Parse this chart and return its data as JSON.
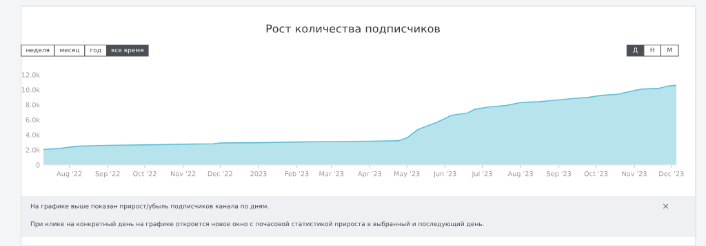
{
  "chart_data": {
    "type": "area",
    "title": "Рост количества подписчиков",
    "x": [
      "2022-07-11",
      "2022-07-25",
      "2022-08-01",
      "2022-08-10",
      "2022-09-01",
      "2022-10-01",
      "2022-11-01",
      "2022-11-25",
      "2022-12-01",
      "2023-01-01",
      "2023-02-01",
      "2023-03-01",
      "2023-04-01",
      "2023-04-24",
      "2023-05-01",
      "2023-05-10",
      "2023-05-16",
      "2023-05-25",
      "2023-06-01",
      "2023-06-06",
      "2023-06-19",
      "2023-06-25",
      "2023-07-06",
      "2023-07-20",
      "2023-08-01",
      "2023-08-15",
      "2023-08-28",
      "2023-09-10",
      "2023-09-25",
      "2023-10-05",
      "2023-10-18",
      "2023-11-07",
      "2023-11-21",
      "2023-11-28",
      "2023-12-05"
    ],
    "series": [
      {
        "color": "#5fc0d8",
        "values": [
          2050,
          2200,
          2350,
          2500,
          2600,
          2650,
          2750,
          2800,
          2900,
          2950,
          3050,
          3100,
          3150,
          3200,
          3600,
          4700,
          5100,
          5650,
          6200,
          6600,
          6900,
          7400,
          7700,
          7900,
          8300,
          8400,
          8600,
          8800,
          9000,
          9250,
          9400,
          10100,
          10200,
          10500,
          10600
        ]
      }
    ],
    "xlim": [
      "2022-07-11",
      "2023-12-05"
    ],
    "xticks": [
      {
        "value": "2022-08-01",
        "label": "Aug '22"
      },
      {
        "value": "2022-09-01",
        "label": "Sep '22"
      },
      {
        "value": "2022-10-01",
        "label": "Oct '22"
      },
      {
        "value": "2022-11-01",
        "label": "Nov '22"
      },
      {
        "value": "2022-12-01",
        "label": "Dec '22"
      },
      {
        "value": "2023-01-01",
        "label": "2023"
      },
      {
        "value": "2023-02-01",
        "label": "Feb '23"
      },
      {
        "value": "2023-03-01",
        "label": "Mar '23"
      },
      {
        "value": "2023-04-01",
        "label": "Apr '23"
      },
      {
        "value": "2023-05-01",
        "label": "May '23"
      },
      {
        "value": "2023-06-01",
        "label": "Jun '23"
      },
      {
        "value": "2023-07-01",
        "label": "Jul '23"
      },
      {
        "value": "2023-08-01",
        "label": "Aug '23"
      },
      {
        "value": "2023-09-01",
        "label": "Sep '23"
      },
      {
        "value": "2023-10-01",
        "label": "Oct '23"
      },
      {
        "value": "2023-11-01",
        "label": "Nov '23"
      },
      {
        "value": "2023-12-01",
        "label": "Dec '23"
      }
    ],
    "ylim": [
      0,
      12000
    ],
    "yticks": [
      0,
      {
        "value": 2000,
        "label": "2.0k"
      },
      {
        "value": 4000,
        "label": "4.0k"
      },
      {
        "value": 6000,
        "label": "6.0k"
      },
      {
        "value": 8000,
        "label": "8.0k"
      },
      {
        "value": 10000,
        "label": "10.0k"
      },
      {
        "value": 12000,
        "label": "12.0k"
      }
    ],
    "grid": false,
    "annotations": [
      "неделя",
      "месяц",
      "год",
      "все время",
      "Д",
      "Н",
      "М",
      "На графике выше показан прирост/убыль подписчиков канала по дням.",
      "При клике на конкретный день на графике откроется новое окно с почасовой статистикой прироста в выбранный и последующий день.",
      "×"
    ]
  }
}
